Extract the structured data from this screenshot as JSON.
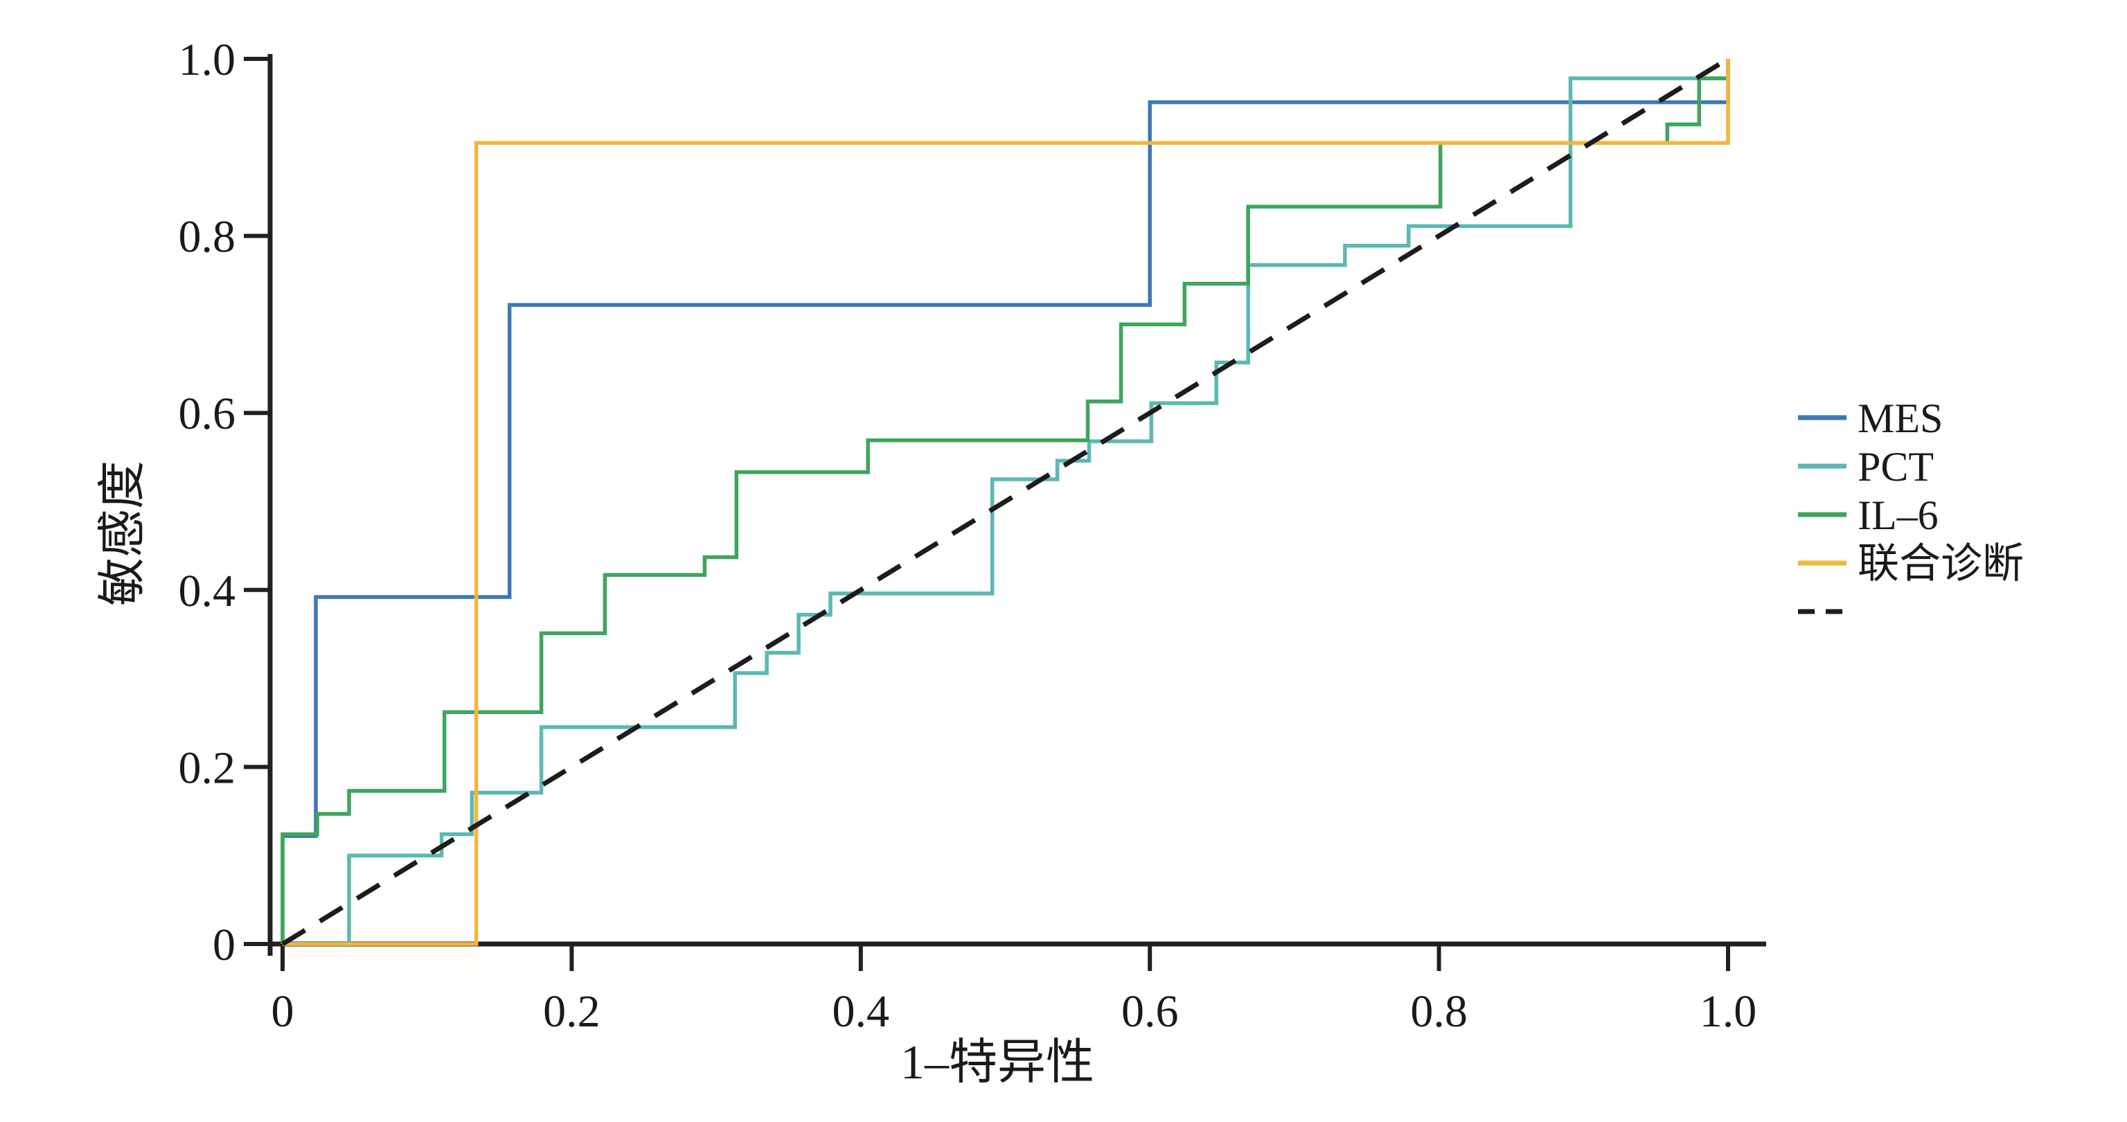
{
  "page": {
    "background": "#ffffff",
    "text_color": "#1a1a1a",
    "axis_color": "#231f20"
  },
  "chart_data": {
    "type": "line",
    "subtype": "roc-step-curves",
    "title": "",
    "xlabel": "1–特异性",
    "ylabel": "敏感度",
    "xlim": [
      0,
      1
    ],
    "ylim": [
      0,
      1
    ],
    "grid": false,
    "legend_position": "right-outside",
    "x_tick_values": [
      0,
      0.2,
      0.4,
      0.6,
      0.8,
      1.0
    ],
    "x_tick_labels": [
      "0",
      "0.2",
      "0.4",
      "0.6",
      "0.8",
      "1.0"
    ],
    "y_tick_values": [
      0,
      0.2,
      0.4,
      0.6,
      0.8,
      1.0
    ],
    "y_tick_labels": [
      "0",
      "0.2",
      "0.4",
      "0.6",
      "0.8",
      "1.0"
    ],
    "series": [
      {
        "name": "MES",
        "color": "#3e78b4",
        "dashed": false,
        "points": [
          [
            0,
            0
          ],
          [
            0,
            0.122
          ],
          [
            0.023,
            0.122
          ],
          [
            0.023,
            0.392
          ],
          [
            0.157,
            0.392
          ],
          [
            0.157,
            0.722
          ],
          [
            0.6,
            0.722
          ],
          [
            0.6,
            0.951
          ],
          [
            1,
            0.951
          ],
          [
            1,
            1
          ]
        ]
      },
      {
        "name": "PCT",
        "color": "#5cb8b2",
        "dashed": false,
        "points": [
          [
            0,
            0
          ],
          [
            0.046,
            0
          ],
          [
            0.046,
            0.1
          ],
          [
            0.11,
            0.1
          ],
          [
            0.11,
            0.124
          ],
          [
            0.131,
            0.124
          ],
          [
            0.131,
            0.171
          ],
          [
            0.179,
            0.171
          ],
          [
            0.179,
            0.245
          ],
          [
            0.313,
            0.245
          ],
          [
            0.313,
            0.306
          ],
          [
            0.335,
            0.306
          ],
          [
            0.335,
            0.329
          ],
          [
            0.357,
            0.329
          ],
          [
            0.357,
            0.372
          ],
          [
            0.379,
            0.372
          ],
          [
            0.379,
            0.396
          ],
          [
            0.491,
            0.396
          ],
          [
            0.491,
            0.525
          ],
          [
            0.536,
            0.525
          ],
          [
            0.536,
            0.546
          ],
          [
            0.558,
            0.546
          ],
          [
            0.558,
            0.568
          ],
          [
            0.601,
            0.568
          ],
          [
            0.601,
            0.611
          ],
          [
            0.646,
            0.611
          ],
          [
            0.646,
            0.657
          ],
          [
            0.668,
            0.657
          ],
          [
            0.668,
            0.767
          ],
          [
            0.735,
            0.767
          ],
          [
            0.735,
            0.789
          ],
          [
            0.779,
            0.789
          ],
          [
            0.779,
            0.811
          ],
          [
            0.891,
            0.811
          ],
          [
            0.891,
            0.978
          ],
          [
            1,
            0.978
          ],
          [
            1,
            1
          ]
        ]
      },
      {
        "name": "IL–6",
        "color": "#3fa45e",
        "dashed": false,
        "points": [
          [
            0,
            0
          ],
          [
            0,
            0.124
          ],
          [
            0.024,
            0.124
          ],
          [
            0.024,
            0.147
          ],
          [
            0.046,
            0.147
          ],
          [
            0.046,
            0.173
          ],
          [
            0.112,
            0.173
          ],
          [
            0.112,
            0.262
          ],
          [
            0.179,
            0.262
          ],
          [
            0.179,
            0.351
          ],
          [
            0.223,
            0.351
          ],
          [
            0.223,
            0.417
          ],
          [
            0.292,
            0.417
          ],
          [
            0.292,
            0.437
          ],
          [
            0.314,
            0.437
          ],
          [
            0.314,
            0.533
          ],
          [
            0.405,
            0.533
          ],
          [
            0.405,
            0.569
          ],
          [
            0.557,
            0.569
          ],
          [
            0.557,
            0.613
          ],
          [
            0.58,
            0.613
          ],
          [
            0.58,
            0.7
          ],
          [
            0.624,
            0.7
          ],
          [
            0.624,
            0.746
          ],
          [
            0.668,
            0.746
          ],
          [
            0.668,
            0.833
          ],
          [
            0.801,
            0.833
          ],
          [
            0.801,
            0.905
          ],
          [
            0.958,
            0.905
          ],
          [
            0.958,
            0.926
          ],
          [
            0.98,
            0.926
          ],
          [
            0.98,
            0.978
          ],
          [
            1,
            0.978
          ],
          [
            1,
            1
          ]
        ]
      },
      {
        "name": "联合诊断",
        "color": "#f2b63e",
        "dashed": false,
        "points": [
          [
            0,
            0
          ],
          [
            0.134,
            0
          ],
          [
            0.134,
            0.905
          ],
          [
            1,
            0.905
          ],
          [
            1,
            1
          ]
        ]
      },
      {
        "name": "reference",
        "color": "#1c1c1c",
        "dashed": true,
        "points": [
          [
            0,
            0
          ],
          [
            1,
            1
          ]
        ]
      }
    ]
  },
  "legend": {
    "items": [
      {
        "label": "MES",
        "color": "#3e78b4",
        "dashed": false
      },
      {
        "label": "PCT",
        "color": "#5cb8b2",
        "dashed": false
      },
      {
        "label": "IL–6",
        "color": "#3fa45e",
        "dashed": false
      },
      {
        "label": "联合诊断",
        "color": "#f2b63e",
        "dashed": false
      },
      {
        "label": "",
        "color": "#1c1c1c",
        "dashed": true
      }
    ]
  }
}
